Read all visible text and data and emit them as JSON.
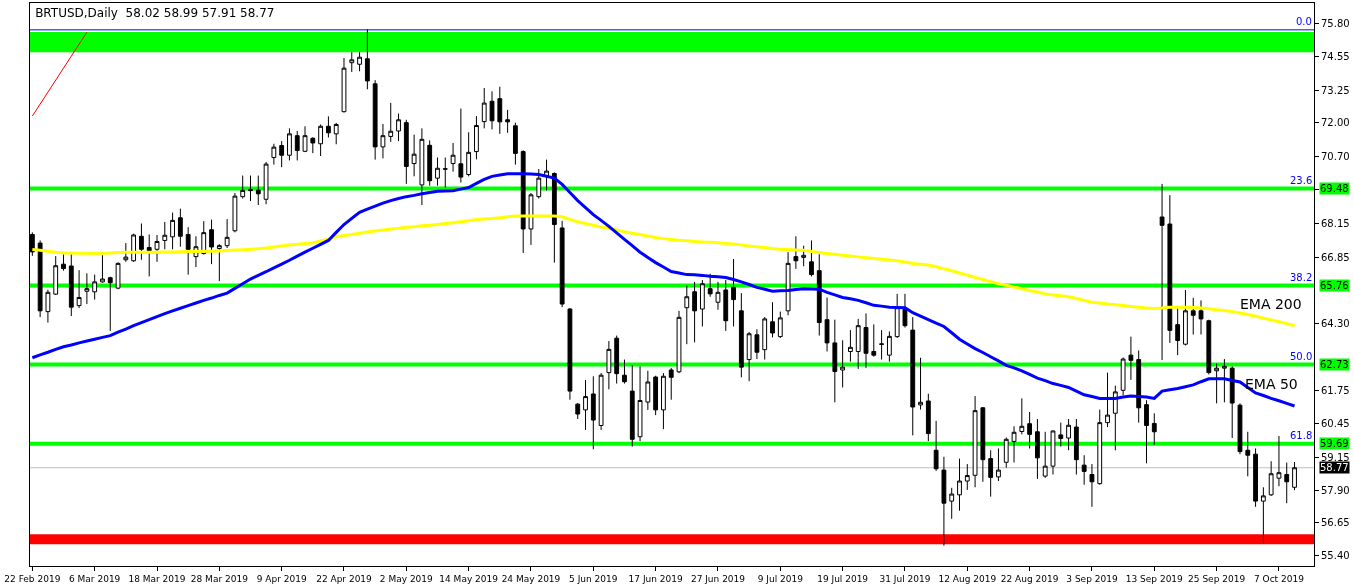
{
  "chart_data": {
    "type": "candlestick",
    "title": "BRTUSD,Daily  58.02 58.99 57.91 58.77",
    "categories": [
      "22 Feb 2019",
      null,
      null,
      null,
      null,
      null,
      null,
      null,
      "6 Mar 2019",
      null,
      null,
      null,
      null,
      null,
      null,
      null,
      "18 Mar 2019",
      null,
      null,
      null,
      null,
      null,
      null,
      null,
      "28 Mar 2019",
      null,
      null,
      null,
      null,
      null,
      null,
      null,
      "9 Apr 2019",
      null,
      null,
      null,
      null,
      null,
      null,
      null,
      "22 Apr 2019",
      null,
      null,
      null,
      null,
      null,
      null,
      null,
      "2 May 2019",
      null,
      null,
      null,
      null,
      null,
      null,
      null,
      "14 May 2019",
      null,
      null,
      null,
      null,
      null,
      null,
      null,
      "24 May 2019",
      null,
      null,
      null,
      null,
      null,
      null,
      null,
      "5 Jun 2019",
      null,
      null,
      null,
      null,
      null,
      null,
      null,
      "17 Jun 2019",
      null,
      null,
      null,
      null,
      null,
      null,
      null,
      "27 Jun 2019",
      null,
      null,
      null,
      null,
      null,
      null,
      null,
      "9 Jul 2019",
      null,
      null,
      null,
      null,
      null,
      null,
      null,
      "19 Jul 2019",
      null,
      null,
      null,
      null,
      null,
      null,
      null,
      "31 Jul 2019",
      null,
      null,
      null,
      null,
      null,
      null,
      null,
      "12 Aug 2019",
      null,
      null,
      null,
      null,
      null,
      null,
      null,
      "22 Aug 2019",
      null,
      null,
      null,
      null,
      null,
      null,
      null,
      "3 Sep 2019",
      null,
      null,
      null,
      null,
      null,
      null,
      null,
      "13 Sep 2019",
      null,
      null,
      null,
      null,
      null,
      null,
      null,
      "25 Sep 2019",
      null,
      null,
      null,
      null,
      null,
      null,
      null,
      "7 Oct 2019",
      null,
      null
    ],
    "ohlc": [
      [
        67.72,
        67.8,
        66.9,
        67.05
      ],
      [
        67.39,
        67.49,
        64.55,
        64.79
      ],
      [
        64.76,
        65.6,
        64.34,
        65.5
      ],
      [
        65.43,
        66.89,
        65.4,
        66.52
      ],
      [
        66.58,
        66.96,
        66.33,
        66.41
      ],
      [
        66.51,
        66.96,
        64.59,
        64.93
      ],
      [
        64.99,
        66.35,
        64.9,
        65.3
      ],
      [
        65.54,
        66.23,
        65.05,
        65.64
      ],
      [
        65.52,
        66.18,
        65.22,
        65.9
      ],
      [
        65.9,
        66.92,
        65.87,
        66.01
      ],
      [
        66.06,
        66.1,
        64.02,
        65.87
      ],
      [
        65.66,
        66.65,
        65.62,
        66.61
      ],
      [
        66.75,
        67.39,
        66.67,
        66.85
      ],
      [
        66.71,
        67.75,
        66.67,
        67.7
      ],
      [
        67.65,
        68.14,
        66.75,
        67.15
      ],
      [
        67.22,
        67.72,
        66.11,
        67.09
      ],
      [
        67.15,
        67.7,
        66.67,
        67.45
      ],
      [
        67.49,
        68.2,
        67.15,
        67.69
      ],
      [
        67.63,
        68.56,
        67.15,
        68.26
      ],
      [
        68.36,
        68.71,
        67.25,
        67.65
      ],
      [
        67.72,
        68.0,
        66.18,
        67.15
      ],
      [
        66.87,
        67.65,
        66.47,
        67.25
      ],
      [
        66.99,
        68.23,
        66.95,
        67.79
      ],
      [
        67.9,
        68.29,
        66.58,
        67.24
      ],
      [
        67.18,
        67.35,
        65.93,
        67.29
      ],
      [
        67.29,
        68.31,
        67.2,
        67.61
      ],
      [
        67.86,
        69.31,
        67.8,
        69.19
      ],
      [
        69.17,
        69.98,
        69.1,
        69.41
      ],
      [
        69.45,
        69.98,
        69.0,
        69.4
      ],
      [
        69.42,
        69.98,
        68.85,
        69.28
      ],
      [
        69.07,
        70.5,
        68.88,
        70.42
      ],
      [
        70.67,
        71.2,
        70.4,
        71.07
      ],
      [
        71.13,
        71.3,
        70.3,
        70.76
      ],
      [
        70.76,
        71.79,
        70.56,
        71.58
      ],
      [
        71.51,
        71.69,
        70.56,
        70.94
      ],
      [
        70.91,
        71.87,
        70.88,
        71.51
      ],
      [
        71.41,
        71.45,
        70.84,
        71.23
      ],
      [
        71.2,
        71.94,
        70.73,
        71.87
      ],
      [
        71.87,
        72.25,
        71.44,
        71.62
      ],
      [
        71.58,
        72.0,
        71.18,
        71.94
      ],
      [
        72.43,
        74.49,
        72.4,
        74.1
      ],
      [
        74.31,
        74.71,
        73.95,
        74.42
      ],
      [
        74.25,
        74.71,
        73.98,
        74.52
      ],
      [
        74.46,
        75.59,
        73.29,
        73.61
      ],
      [
        73.5,
        73.64,
        70.59,
        71.08
      ],
      [
        71.08,
        71.96,
        70.64,
        71.51
      ],
      [
        71.48,
        72.77,
        71.27,
        71.68
      ],
      [
        71.69,
        72.36,
        71.3,
        72.12
      ],
      [
        72.01,
        72.12,
        69.66,
        70.33
      ],
      [
        70.44,
        71.55,
        69.95,
        70.8
      ],
      [
        69.62,
        71.79,
        68.85,
        71.37
      ],
      [
        71.14,
        71.33,
        69.59,
        69.78
      ],
      [
        69.88,
        70.67,
        69.59,
        70.26
      ],
      [
        70.22,
        70.67,
        69.52,
        70.24
      ],
      [
        70.44,
        71.23,
        70.13,
        70.76
      ],
      [
        70.43,
        72.55,
        69.71,
        69.92
      ],
      [
        70.02,
        71.64,
        69.95,
        70.87
      ],
      [
        70.9,
        72.26,
        70.6,
        71.9
      ],
      [
        72.05,
        73.34,
        71.79,
        72.76
      ],
      [
        72.83,
        73.21,
        71.75,
        72.08
      ],
      [
        72.93,
        73.39,
        71.58,
        72.04
      ],
      [
        72.12,
        72.5,
        71.62,
        72.04
      ],
      [
        71.89,
        72.01,
        70.4,
        70.83
      ],
      [
        70.9,
        70.95,
        67.01,
        67.93
      ],
      [
        67.93,
        69.31,
        67.32,
        69.24
      ],
      [
        69.17,
        70.23,
        69.1,
        69.88
      ],
      [
        69.95,
        70.59,
        69.4,
        70.15
      ],
      [
        70.06,
        70.1,
        66.64,
        68.1
      ],
      [
        67.97,
        68.24,
        64.93,
        65.05
      ],
      [
        64.86,
        64.9,
        61.38,
        61.71
      ],
      [
        61.21,
        61.25,
        60.64,
        60.83
      ],
      [
        60.99,
        62.14,
        60.22,
        61.5
      ],
      [
        61.6,
        62.28,
        59.48,
        60.6
      ],
      [
        60.39,
        62.4,
        60.22,
        62.32
      ],
      [
        62.42,
        63.63,
        61.78,
        63.31
      ],
      [
        63.74,
        63.84,
        62.0,
        62.38
      ],
      [
        62.32,
        62.92,
        62.0,
        62.07
      ],
      [
        61.71,
        62.7,
        59.58,
        59.86
      ],
      [
        59.96,
        62.66,
        59.79,
        61.35
      ],
      [
        61.29,
        62.49,
        60.99,
        62.06
      ],
      [
        62.25,
        62.3,
        60.79,
        60.99
      ],
      [
        60.99,
        62.4,
        60.25,
        62.28
      ],
      [
        62.52,
        62.6,
        61.38,
        62.24
      ],
      [
        62.45,
        64.79,
        62.4,
        64.54
      ],
      [
        64.91,
        65.76,
        63.51,
        65.33
      ],
      [
        65.52,
        65.9,
        63.58,
        64.79
      ],
      [
        64.86,
        65.97,
        64.19,
        65.83
      ],
      [
        65.64,
        66.21,
        65.33,
        65.44
      ],
      [
        65.12,
        65.9,
        64.83,
        65.5
      ],
      [
        65.59,
        65.97,
        64.02,
        64.41
      ],
      [
        65.69,
        66.78,
        64.19,
        65.22
      ],
      [
        64.79,
        65.47,
        62.24,
        62.63
      ],
      [
        62.92,
        63.98,
        62.09,
        63.91
      ],
      [
        63.87,
        64.08,
        62.94,
        63.2
      ],
      [
        63.3,
        64.55,
        62.92,
        64.48
      ],
      [
        64.37,
        65.12,
        63.77,
        63.94
      ],
      [
        63.8,
        64.76,
        63.75,
        64.52
      ],
      [
        64.79,
        67.04,
        64.62,
        66.61
      ],
      [
        66.87,
        67.65,
        66.4,
        66.71
      ],
      [
        66.84,
        67.29,
        66.5,
        66.92
      ],
      [
        66.67,
        67.49,
        66.11,
        66.18
      ],
      [
        66.33,
        66.96,
        63.84,
        64.34
      ],
      [
        64.45,
        65.3,
        63.23,
        63.56
      ],
      [
        63.56,
        64.45,
        61.28,
        62.46
      ],
      [
        62.52,
        63.66,
        61.85,
        62.63
      ],
      [
        63.23,
        64.05,
        62.84,
        63.39
      ],
      [
        63.23,
        64.48,
        62.56,
        64.22
      ],
      [
        64.15,
        64.69,
        62.6,
        63.16
      ],
      [
        63.23,
        64.27,
        63.03,
        63.09
      ],
      [
        63.5,
        64.05,
        62.92,
        63.52
      ],
      [
        63.09,
        64.0,
        62.84,
        63.81
      ],
      [
        63.8,
        65.44,
        63.75,
        64.91
      ],
      [
        64.91,
        65.44,
        64.15,
        64.22
      ],
      [
        64.05,
        64.55,
        60.01,
        61.1
      ],
      [
        61.18,
        62.99,
        61.0,
        61.28
      ],
      [
        61.33,
        61.61,
        59.79,
        60.08
      ],
      [
        59.44,
        60.57,
        58.65,
        58.73
      ],
      [
        58.68,
        59.19,
        55.78,
        57.41
      ],
      [
        57.49,
        58.0,
        56.81,
        57.76
      ],
      [
        57.73,
        59.12,
        57.12,
        58.26
      ],
      [
        58.26,
        58.91,
        57.92,
        58.47
      ],
      [
        58.48,
        61.52,
        58.02,
        60.96
      ],
      [
        61.07,
        61.1,
        58.23,
        59.08
      ],
      [
        59.12,
        59.44,
        57.66,
        58.4
      ],
      [
        58.42,
        59.51,
        58.26,
        58.68
      ],
      [
        58.98,
        59.93,
        58.77,
        59.86
      ],
      [
        59.78,
        60.36,
        58.97,
        60.13
      ],
      [
        60.16,
        61.43,
        60.05,
        60.36
      ],
      [
        60.46,
        60.91,
        59.51,
        60.05
      ],
      [
        60.15,
        60.64,
        58.34,
        59.15
      ],
      [
        58.45,
        60.15,
        58.38,
        58.83
      ],
      [
        58.83,
        60.2,
        58.51,
        60.18
      ],
      [
        60.03,
        60.5,
        59.58,
        59.89
      ],
      [
        59.91,
        60.64,
        59.44,
        60.4
      ],
      [
        60.33,
        60.64,
        58.51,
        59.08
      ],
      [
        58.87,
        59.25,
        58.12,
        58.63
      ],
      [
        58.51,
        58.91,
        57.27,
        58.23
      ],
      [
        58.16,
        61.0,
        58.12,
        60.5
      ],
      [
        60.5,
        62.42,
        60.33,
        60.79
      ],
      [
        60.86,
        61.92,
        59.44,
        61.68
      ],
      [
        61.74,
        63.0,
        61.55,
        62.94
      ],
      [
        63.09,
        63.8,
        62.14,
        62.89
      ],
      [
        62.92,
        63.27,
        60.5,
        61.07
      ],
      [
        61.19,
        61.36,
        58.94,
        60.39
      ],
      [
        60.47,
        60.86,
        59.65,
        60.15
      ],
      [
        68.39,
        69.66,
        62.9,
        68.07
      ],
      [
        68.12,
        69.23,
        63.56,
        64.04
      ],
      [
        64.26,
        64.97,
        63.09,
        63.65
      ],
      [
        63.51,
        65.59,
        63.46,
        64.79
      ],
      [
        64.79,
        65.29,
        63.88,
        64.62
      ],
      [
        64.79,
        65.19,
        63.88,
        64.48
      ],
      [
        64.41,
        64.45,
        62.35,
        62.42
      ],
      [
        62.49,
        62.77,
        61.24,
        62.59
      ],
      [
        62.59,
        62.94,
        61.28,
        62.66
      ],
      [
        62.59,
        62.66,
        59.91,
        61.25
      ],
      [
        61.17,
        61.24,
        59.29,
        59.39
      ],
      [
        59.44,
        60.15,
        58.44,
        59.25
      ],
      [
        59.29,
        59.51,
        57.27,
        57.49
      ],
      [
        57.49,
        58.02,
        55.89,
        57.69
      ],
      [
        57.73,
        59.02,
        57.69,
        58.54
      ],
      [
        58.37,
        59.99,
        58.06,
        58.58
      ],
      [
        58.51,
        58.97,
        57.41,
        58.23
      ],
      [
        58.02,
        58.99,
        57.91,
        58.77
      ]
    ],
    "series": [
      {
        "type": "line",
        "name": "EMA 200",
        "color": "#ffff00",
        "values": [
          67.14,
          67.11,
          67.08,
          67.04,
          67.01,
          67.01,
          67.0,
          67.0,
          66.99,
          67.0,
          67.01,
          67.03,
          67.04,
          67.04,
          67.04,
          67.04,
          67.04,
          67.05,
          67.05,
          67.06,
          67.07,
          67.07,
          67.08,
          67.08,
          67.09,
          67.1,
          67.12,
          67.13,
          67.15,
          67.17,
          67.2,
          67.24,
          67.28,
          67.32,
          67.34,
          67.37,
          67.39,
          67.47,
          67.55,
          67.63,
          67.68,
          67.72,
          67.77,
          67.81,
          67.85,
          67.89,
          67.93,
          67.96,
          68.0,
          68.02,
          68.05,
          68.07,
          68.1,
          68.14,
          68.17,
          68.21,
          68.25,
          68.29,
          68.31,
          68.33,
          68.36,
          68.4,
          68.43,
          68.43,
          68.43,
          68.43,
          68.43,
          68.43,
          68.4,
          68.3,
          68.21,
          68.14,
          68.07,
          68.01,
          67.96,
          67.89,
          67.82,
          67.77,
          67.72,
          67.66,
          67.6,
          67.56,
          67.53,
          67.5,
          67.48,
          67.45,
          67.43,
          67.42,
          67.4,
          67.37,
          67.35,
          67.32,
          67.28,
          67.25,
          67.22,
          67.18,
          67.15,
          67.14,
          67.12,
          67.11,
          67.07,
          67.03,
          66.99,
          66.96,
          66.92,
          66.89,
          66.86,
          66.83,
          66.8,
          66.77,
          66.74,
          66.71,
          66.66,
          66.61,
          66.58,
          66.55,
          66.48,
          66.4,
          66.33,
          66.24,
          66.16,
          66.07,
          65.99,
          65.91,
          65.83,
          65.77,
          65.7,
          65.64,
          65.57,
          65.51,
          65.44,
          65.4,
          65.37,
          65.33,
          65.26,
          65.19,
          65.12,
          65.09,
          65.05,
          65.02,
          64.99,
          64.96,
          64.93,
          64.9,
          64.88,
          64.9,
          64.93,
          64.93,
          64.93,
          64.92,
          64.9,
          64.87,
          64.83,
          64.8,
          64.76,
          64.71,
          64.65,
          64.58,
          64.51,
          64.44,
          64.37,
          64.3,
          64.22
        ]
      },
      {
        "type": "line",
        "name": "EMA 50",
        "color": "#0000ff",
        "values": [
          62.99,
          63.1,
          63.2,
          63.31,
          63.41,
          63.48,
          63.56,
          63.63,
          63.7,
          63.77,
          63.84,
          63.97,
          64.09,
          64.22,
          64.34,
          64.45,
          64.57,
          64.68,
          64.79,
          64.89,
          64.99,
          65.09,
          65.19,
          65.28,
          65.38,
          65.47,
          65.65,
          65.83,
          66.01,
          66.15,
          66.29,
          66.44,
          66.58,
          66.73,
          66.89,
          67.04,
          67.19,
          67.34,
          67.49,
          67.8,
          68.1,
          68.34,
          68.57,
          68.69,
          68.81,
          68.92,
          69.02,
          69.1,
          69.17,
          69.22,
          69.28,
          69.33,
          69.38,
          69.39,
          69.4,
          69.46,
          69.52,
          69.68,
          69.83,
          69.95,
          70.0,
          70.05,
          70.05,
          70.05,
          70.04,
          70.02,
          69.95,
          69.88,
          69.64,
          69.33,
          69.02,
          68.75,
          68.48,
          68.26,
          68.03,
          67.78,
          67.53,
          67.29,
          67.04,
          66.84,
          66.64,
          66.47,
          66.3,
          66.24,
          66.18,
          66.17,
          66.15,
          66.12,
          66.1,
          66.07,
          65.99,
          65.9,
          65.8,
          65.69,
          65.62,
          65.54,
          65.56,
          65.57,
          65.61,
          65.64,
          65.63,
          65.62,
          65.5,
          65.4,
          65.3,
          65.25,
          65.19,
          65.1,
          65.0,
          64.97,
          64.93,
          64.92,
          64.91,
          64.72,
          64.59,
          64.45,
          64.32,
          64.19,
          63.95,
          63.7,
          63.52,
          63.34,
          63.19,
          63.03,
          62.87,
          62.7,
          62.6,
          62.49,
          62.35,
          62.21,
          62.11,
          62.0,
          61.93,
          61.85,
          61.71,
          61.57,
          61.5,
          61.43,
          61.43,
          61.43,
          61.48,
          61.52,
          61.5,
          61.48,
          61.43,
          61.71,
          61.76,
          61.81,
          61.88,
          61.95,
          62.07,
          62.18,
          62.18,
          62.18,
          62.12,
          62.06,
          61.85,
          61.64,
          61.54,
          61.43,
          61.34,
          61.24,
          61.14
        ]
      },
      {
        "type": "line",
        "color": "#ff0000",
        "values": [
          72.26,
          null,
          null,
          null,
          null,
          null,
          null,
          75.48,
          null,
          null,
          null,
          null,
          null,
          null,
          null,
          null,
          null,
          null,
          null,
          null,
          null,
          null,
          null,
          null,
          null,
          null,
          null,
          null,
          null,
          null,
          null,
          null,
          null,
          null,
          null,
          null,
          null,
          null,
          null,
          null,
          null,
          null,
          null,
          null,
          null,
          null,
          null,
          null,
          null,
          null,
          null,
          null,
          null,
          null,
          null,
          null,
          null,
          null,
          null,
          null,
          null,
          null,
          null,
          null,
          null,
          null,
          null,
          null,
          null,
          null,
          null,
          null,
          null,
          null,
          null,
          null,
          null,
          null,
          null,
          null,
          null,
          null,
          null,
          null,
          null,
          null,
          null,
          null,
          null,
          null,
          null,
          null,
          null,
          null,
          null,
          null,
          null,
          null,
          null,
          null,
          null,
          null,
          null,
          null,
          null,
          null,
          null,
          null,
          null,
          null,
          null,
          null,
          null,
          null,
          null,
          null,
          null,
          null,
          null,
          null,
          null,
          null,
          null,
          null,
          null,
          null,
          null,
          null,
          null,
          null,
          null,
          null,
          null,
          null,
          null,
          null,
          null,
          null,
          null,
          null,
          null,
          null,
          null,
          null,
          null,
          null,
          null,
          null,
          null,
          null,
          null,
          null,
          null,
          null,
          null,
          null,
          null,
          null,
          null,
          null,
          null,
          null,
          null
        ]
      }
    ],
    "ylim": [
      55.0,
      76.6
    ],
    "yticks": [
      {
        "value": 75.8,
        "label": "75.80"
      },
      {
        "value": 74.55,
        "label": "74.55"
      },
      {
        "value": 73.25,
        "label": "73.25"
      },
      {
        "value": 72.0,
        "label": "72.00"
      },
      {
        "value": 70.7,
        "label": "70.70"
      },
      {
        "value": 69.45,
        "label": null
      },
      {
        "value": 68.15,
        "label": "68.15"
      },
      {
        "value": 66.85,
        "label": "66.85"
      },
      {
        "value": 64.3,
        "label": "64.30"
      },
      {
        "value": 61.75,
        "label": "61.75"
      },
      {
        "value": 60.45,
        "label": "60.45"
      },
      {
        "value": 59.15,
        "label": "59.15"
      },
      {
        "value": 57.9,
        "label": "57.90"
      },
      {
        "value": 56.65,
        "label": "56.65"
      },
      {
        "value": 55.4,
        "label": "55.40"
      }
    ],
    "bands": [
      {
        "axis": "y",
        "from": 74.71,
        "to": 75.49,
        "color": "#00ff00"
      },
      {
        "axis": "y",
        "from": 55.83,
        "to": 56.22,
        "color": "#ff0000"
      }
    ],
    "ref_lines": [
      {
        "axis": "y",
        "value": 75.57,
        "color": "#0000ff"
      },
      {
        "axis": "y",
        "value": 69.48,
        "label": "69.48",
        "color": "#00ff00"
      },
      {
        "axis": "y",
        "value": 65.76,
        "label": "65.76",
        "color": "#00ff00"
      },
      {
        "axis": "y",
        "value": 62.73,
        "label": "62.73",
        "color": "#00ff00"
      },
      {
        "axis": "y",
        "value": 59.69,
        "label": "59.69",
        "color": "#00ff00"
      },
      {
        "axis": "y",
        "value": 58.77,
        "label": "58.77",
        "color": "#c0c0c0"
      }
    ],
    "annotations": [
      {
        "text": "0.0",
        "y": 75.57
      },
      {
        "text": "23.6",
        "y": 69.48
      },
      {
        "text": "38.2",
        "y": 65.76
      },
      {
        "text": "50.0",
        "y": 62.73
      },
      {
        "text": "61.8",
        "y": 59.69
      }
    ],
    "legend": false
  }
}
